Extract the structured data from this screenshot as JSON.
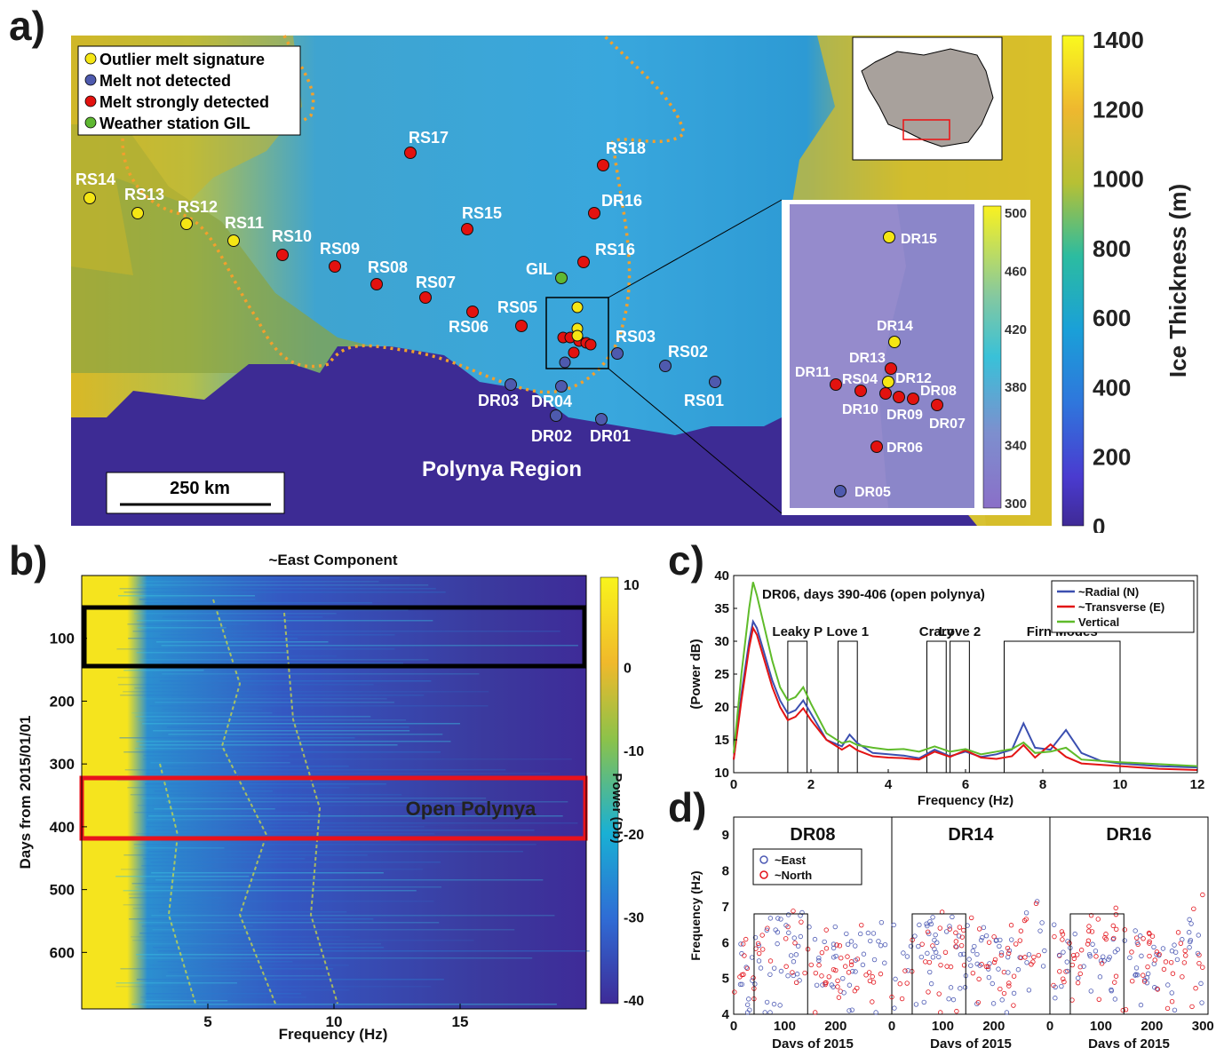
{
  "panel_a": {
    "letter": "a)",
    "legend": [
      {
        "label": "Outlier melt signature",
        "color": "#f5e614"
      },
      {
        "label": "Melt not detected",
        "color": "#4e5aae"
      },
      {
        "label": "Melt strongly detected",
        "color": "#e3120f"
      },
      {
        "label": "Weather station GIL",
        "color": "#5fb832"
      }
    ],
    "stations": [
      {
        "name": "RS14",
        "type": "outlier"
      },
      {
        "name": "RS13",
        "type": "outlier"
      },
      {
        "name": "RS12",
        "type": "outlier"
      },
      {
        "name": "RS11",
        "type": "outlier"
      },
      {
        "name": "RS10",
        "type": "melt"
      },
      {
        "name": "RS09",
        "type": "melt"
      },
      {
        "name": "RS08",
        "type": "melt"
      },
      {
        "name": "RS07",
        "type": "melt"
      },
      {
        "name": "RS06",
        "type": "melt"
      },
      {
        "name": "RS05",
        "type": "melt"
      },
      {
        "name": "RS15",
        "type": "melt"
      },
      {
        "name": "RS17",
        "type": "melt"
      },
      {
        "name": "RS18",
        "type": "melt"
      },
      {
        "name": "DR16",
        "type": "melt"
      },
      {
        "name": "RS16",
        "type": "melt"
      },
      {
        "name": "GIL",
        "type": "weather"
      },
      {
        "name": "RS03",
        "type": "none"
      },
      {
        "name": "RS02",
        "type": "none"
      },
      {
        "name": "RS01",
        "type": "none"
      },
      {
        "name": "DR03",
        "type": "none"
      },
      {
        "name": "DR04",
        "type": "none"
      },
      {
        "name": "DR02",
        "type": "none"
      },
      {
        "name": "DR01",
        "type": "none"
      }
    ],
    "scale_bar": "250 km",
    "region_label": "Polynya Region",
    "colorbar": {
      "label": "Ice Thickness (m)",
      "ticks": [
        "1400",
        "1200",
        "1000",
        "800",
        "600",
        "400",
        "200",
        "0"
      ]
    },
    "inset": {
      "stations": [
        {
          "name": "DR15",
          "type": "outlier"
        },
        {
          "name": "DR14",
          "type": "outlier"
        },
        {
          "name": "DR13",
          "type": "melt"
        },
        {
          "name": "DR12",
          "type": "outlier"
        },
        {
          "name": "DR11",
          "type": "melt"
        },
        {
          "name": "RS04",
          "type": "melt"
        },
        {
          "name": "DR10",
          "type": "melt"
        },
        {
          "name": "DR09",
          "type": "melt"
        },
        {
          "name": "DR08",
          "type": "melt"
        },
        {
          "name": "DR07",
          "type": "melt"
        },
        {
          "name": "DR06",
          "type": "melt"
        },
        {
          "name": "DR05",
          "type": "none"
        }
      ],
      "colorbar_ticks": [
        "500",
        "460",
        "420",
        "380",
        "340",
        "300"
      ]
    }
  },
  "panel_b": {
    "letter": "b)",
    "title": "~East Component",
    "xlabel": "Frequency (Hz)",
    "ylabel": "Days from 2015/01/01",
    "xticks": [
      "5",
      "10",
      "15"
    ],
    "yticks": [
      "100",
      "200",
      "300",
      "400",
      "500",
      "600"
    ],
    "annotation": "Open Polynya",
    "colorbar": {
      "label": "Power (Db)",
      "ticks": [
        "10",
        "0",
        "-10",
        "-20",
        "-30",
        "-40"
      ]
    }
  },
  "panel_c": {
    "letter": "c)",
    "chart_data": {
      "type": "line",
      "title": "DR06, days 390-406 (open polynya)",
      "xlabel": "Frequency (Hz)",
      "ylabel": "(Power dB)",
      "xlim": [
        0,
        12
      ],
      "ylim": [
        10,
        40
      ],
      "xticks": [
        0,
        2,
        4,
        6,
        8,
        10,
        12
      ],
      "yticks": [
        10,
        15,
        20,
        25,
        30,
        35,
        40
      ],
      "legend_position": "top-right",
      "series": [
        {
          "name": "~Radial (N)",
          "color": "#3b4fb0",
          "x": [
            0,
            0.2,
            0.4,
            0.5,
            0.6,
            0.8,
            1,
            1.2,
            1.4,
            1.6,
            1.8,
            2,
            2.4,
            2.8,
            3,
            3.2,
            3.6,
            4,
            4.4,
            4.8,
            5.2,
            5.6,
            6,
            6.4,
            6.8,
            7.2,
            7.5,
            7.8,
            8.2,
            8.6,
            9,
            9.5,
            10,
            11,
            12
          ],
          "y": [
            12,
            22,
            30,
            33,
            32,
            28,
            24,
            21,
            19,
            19.5,
            21,
            19,
            15,
            14,
            15.8,
            14.5,
            13,
            12.8,
            12.6,
            12.2,
            13.5,
            12.5,
            13.2,
            12.4,
            12.8,
            13.5,
            17.5,
            13.8,
            13.5,
            16.5,
            13,
            11.8,
            11.4,
            11,
            10.8
          ]
        },
        {
          "name": "~Transverse (E)",
          "color": "#e31414",
          "x": [
            0,
            0.2,
            0.4,
            0.5,
            0.6,
            0.8,
            1,
            1.2,
            1.4,
            1.6,
            1.8,
            2,
            2.4,
            2.8,
            3,
            3.2,
            3.6,
            4,
            4.4,
            4.8,
            5.2,
            5.6,
            6,
            6.4,
            6.8,
            7.2,
            7.5,
            7.8,
            8.2,
            8.6,
            9,
            9.5,
            10,
            11,
            12
          ],
          "y": [
            12,
            21,
            29,
            32,
            31,
            27,
            23,
            20,
            18,
            18.5,
            19.8,
            18,
            15,
            13.5,
            14.2,
            13.4,
            12.5,
            12.3,
            12.2,
            12,
            13.2,
            12.4,
            13.4,
            12.3,
            12.1,
            12.5,
            14.2,
            12.3,
            14.3,
            12.4,
            11.4,
            11.2,
            11,
            10.6,
            10.4
          ]
        },
        {
          "name": "Vertical",
          "color": "#5fbb2a",
          "x": [
            0,
            0.2,
            0.4,
            0.5,
            0.6,
            0.8,
            1,
            1.2,
            1.4,
            1.6,
            1.8,
            2,
            2.4,
            2.8,
            3,
            3.2,
            3.6,
            4,
            4.4,
            4.8,
            5.2,
            5.6,
            6,
            6.4,
            6.8,
            7.2,
            7.5,
            7.8,
            8.2,
            8.6,
            9,
            9.5,
            10,
            11,
            12
          ],
          "y": [
            13,
            25,
            35,
            39,
            37,
            32,
            27,
            23,
            21,
            21.5,
            23,
            20.5,
            16,
            14.5,
            14.8,
            14.2,
            13.8,
            13.5,
            13.6,
            13.2,
            14,
            13.2,
            13.6,
            12.8,
            13.2,
            13.6,
            14.6,
            13,
            13.2,
            13.8,
            12,
            11.8,
            11.6,
            11.3,
            11
          ]
        }
      ],
      "bands": [
        {
          "label": "Leaky P",
          "x0": 1.4,
          "x1": 1.9
        },
        {
          "label": "Love 1",
          "x0": 2.7,
          "x1": 3.2
        },
        {
          "label": "Crary",
          "x0": 5.0,
          "x1": 5.5
        },
        {
          "label": "Love 2",
          "x0": 5.6,
          "x1": 6.1
        },
        {
          "label": "Firn Modes",
          "x0": 7.0,
          "x1": 10.0
        }
      ]
    }
  },
  "panel_d": {
    "letter": "d)",
    "chart_data": {
      "type": "scatter",
      "ylabel": "Frequency (Hz)",
      "xlabel": "Days of 2015",
      "ylim": [
        4,
        9.5
      ],
      "yticks": [
        4,
        5,
        6,
        7,
        8,
        9
      ],
      "xticks": [
        0,
        100,
        200,
        300
      ],
      "legend": [
        "~East",
        "~North"
      ],
      "colors": {
        "east": "#4d5ab4",
        "north": "#e3121a"
      },
      "subplots": [
        "DR08",
        "DR14",
        "DR16"
      ]
    }
  }
}
